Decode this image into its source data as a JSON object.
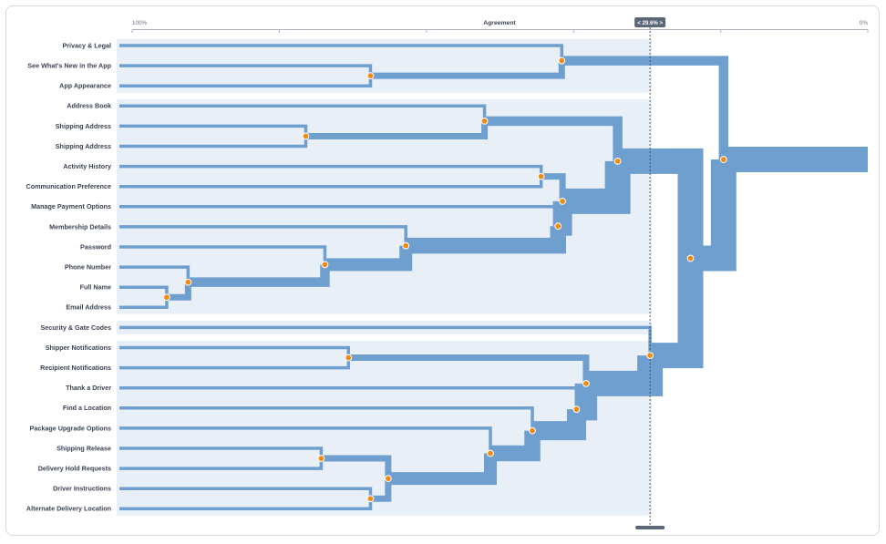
{
  "chart_data": {
    "type": "dendrogram",
    "x_axis": {
      "title": "Agreement",
      "left_label": "100%",
      "right_label": "0%",
      "range": [
        100,
        0
      ]
    },
    "threshold": {
      "label": "< 29.6% >",
      "value": 29.6
    },
    "leaves": [
      "Privacy & Legal",
      "See What's New in the App",
      "App Appearance",
      "Address Book",
      "Shipping Address",
      "Shipping Address",
      "Activity History",
      "Communication Preference",
      "Manage Payment Options",
      "Membership Details",
      "Password",
      "Phone Number",
      "Full Name",
      "Email Address",
      "Security & Gate Codes",
      "Shipper Notifications",
      "Recipient Notifications",
      "Thank a Driver",
      "Find a Location",
      "Package Upgrade Options",
      "Shipping Release",
      "Delivery Hold Requests",
      "Driver Instructions",
      "Alternate Delivery Location"
    ],
    "merges": [
      {
        "id": "m1",
        "left": 1,
        "right": 2,
        "value": 67.6
      },
      {
        "id": "m2",
        "left": 0,
        "right": "m1",
        "value": 41.6
      },
      {
        "id": "m3",
        "left": 4,
        "right": 5,
        "value": 76.4
      },
      {
        "id": "m4",
        "left": 3,
        "right": "m3",
        "value": 52.1
      },
      {
        "id": "m5",
        "left": 6,
        "right": 7,
        "value": 44.4
      },
      {
        "id": "m6",
        "left": 12,
        "right": 13,
        "value": 95.3
      },
      {
        "id": "m7",
        "left": 11,
        "right": "m6",
        "value": 92.4
      },
      {
        "id": "m8",
        "left": 10,
        "right": "m7",
        "value": 73.8
      },
      {
        "id": "m9",
        "left": 9,
        "right": "m8",
        "value": 62.8
      },
      {
        "id": "m10",
        "left": 8,
        "right": "m9",
        "value": 42.1
      },
      {
        "id": "m11",
        "left": "m5",
        "right": "m10",
        "value": 41.5
      },
      {
        "id": "m12",
        "left": "m4",
        "right": "m11",
        "value": 34.0
      },
      {
        "id": "m13",
        "left": 15,
        "right": 16,
        "value": 70.6
      },
      {
        "id": "m14",
        "left": 20,
        "right": 21,
        "value": 74.3
      },
      {
        "id": "m15",
        "left": 22,
        "right": 23,
        "value": 67.6
      },
      {
        "id": "m16",
        "left": "m14",
        "right": "m15",
        "value": 65.2
      },
      {
        "id": "m17",
        "left": 19,
        "right": "m16",
        "value": 51.3
      },
      {
        "id": "m18",
        "left": 18,
        "right": "m17",
        "value": 45.6
      },
      {
        "id": "m19",
        "left": 17,
        "right": "m18",
        "value": 39.6
      },
      {
        "id": "m20",
        "left": "m13",
        "right": "m19",
        "value": 38.3
      },
      {
        "id": "m21",
        "left": 14,
        "right": "m20",
        "value": 29.6
      },
      {
        "id": "m22",
        "left": "m12",
        "right": "m21",
        "value": 24.1
      },
      {
        "id": "m23",
        "left": "m2",
        "right": "m22",
        "value": 19.6
      }
    ],
    "groups": [
      {
        "from": 0,
        "to": 2
      },
      {
        "from": 3,
        "to": 13
      },
      {
        "from": 14,
        "to": 14
      },
      {
        "from": 15,
        "to": 23
      }
    ],
    "colors": {
      "line": "#6e9fcf",
      "node_fill": "#f08a12",
      "node_stroke": "#ffffff",
      "group_band": "#e8eff7",
      "threshold_badge": "#5a6778",
      "axis": "#aab2bd"
    }
  }
}
